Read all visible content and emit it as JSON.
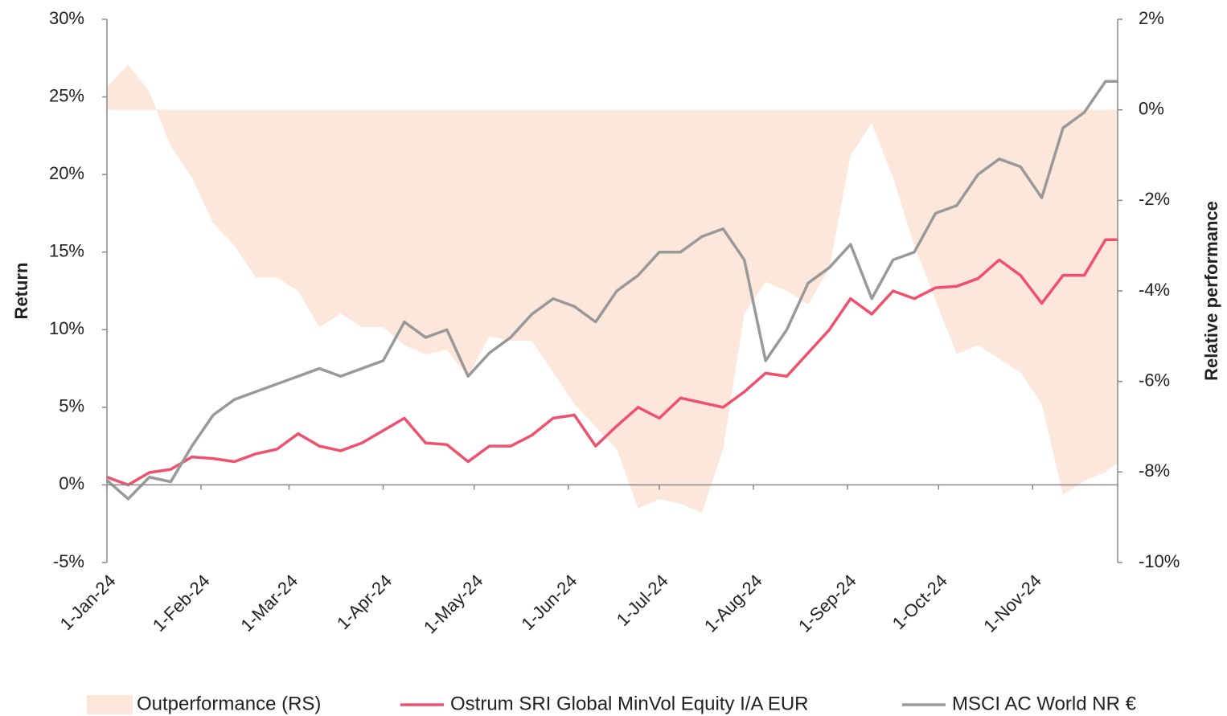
{
  "chart_data": {
    "type": "line",
    "y_label": "Return",
    "y2_label": "Relative performance",
    "x": [
      "2024-01-01",
      "2024-01-08",
      "2024-01-15",
      "2024-01-22",
      "2024-01-29",
      "2024-02-05",
      "2024-02-12",
      "2024-02-19",
      "2024-02-26",
      "2024-03-04",
      "2024-03-11",
      "2024-03-18",
      "2024-03-25",
      "2024-04-01",
      "2024-04-08",
      "2024-04-15",
      "2024-04-22",
      "2024-04-29",
      "2024-05-06",
      "2024-05-13",
      "2024-05-20",
      "2024-05-27",
      "2024-06-03",
      "2024-06-10",
      "2024-06-17",
      "2024-06-24",
      "2024-07-01",
      "2024-07-08",
      "2024-07-15",
      "2024-07-22",
      "2024-07-29",
      "2024-08-05",
      "2024-08-12",
      "2024-08-19",
      "2024-08-26",
      "2024-09-02",
      "2024-09-09",
      "2024-09-16",
      "2024-09-23",
      "2024-09-30",
      "2024-10-07",
      "2024-10-14",
      "2024-10-21",
      "2024-10-28",
      "2024-11-04",
      "2024-11-11",
      "2024-11-18",
      "2024-11-25",
      "2024-11-29"
    ],
    "xlim": [
      "2024-01-01",
      "2024-11-29"
    ],
    "xticks": [
      {
        "value": "2024-01-01",
        "label": "1-Jan-24"
      },
      {
        "value": "2024-02-01",
        "label": "1-Feb-24"
      },
      {
        "value": "2024-03-01",
        "label": "1-Mar-24"
      },
      {
        "value": "2024-04-01",
        "label": "1-Apr-24"
      },
      {
        "value": "2024-05-01",
        "label": "1-May-24"
      },
      {
        "value": "2024-06-01",
        "label": "1-Jun-24"
      },
      {
        "value": "2024-07-01",
        "label": "1-Jul-24"
      },
      {
        "value": "2024-08-01",
        "label": "1-Aug-24"
      },
      {
        "value": "2024-09-01",
        "label": "1-Sep-24"
      },
      {
        "value": "2024-10-01",
        "label": "1-Oct-24"
      },
      {
        "value": "2024-11-01",
        "label": "1-Nov-24"
      }
    ],
    "ylim": [
      -5,
      30
    ],
    "yticks": [
      {
        "value": -5,
        "label": "-5%"
      },
      {
        "value": 0,
        "label": "0%"
      },
      {
        "value": 5,
        "label": "5%"
      },
      {
        "value": 10,
        "label": "10%"
      },
      {
        "value": 15,
        "label": "15%"
      },
      {
        "value": 20,
        "label": "20%"
      },
      {
        "value": 25,
        "label": "25%"
      },
      {
        "value": 30,
        "label": "30%"
      }
    ],
    "y2lim": [
      -10,
      2
    ],
    "y2ticks": [
      {
        "value": -10,
        "label": "-10%"
      },
      {
        "value": -8,
        "label": "-8%"
      },
      {
        "value": -6,
        "label": "-6%"
      },
      {
        "value": -4,
        "label": "-4%"
      },
      {
        "value": -2,
        "label": "-2%"
      },
      {
        "value": 0,
        "label": "0%"
      },
      {
        "value": 2,
        "label": "2%"
      }
    ],
    "series": [
      {
        "name": "Outperformance (RS)",
        "type": "area",
        "axis": "y2",
        "color": "#fde6da",
        "values": [
          0.5,
          1.0,
          0.4,
          -0.8,
          -1.5,
          -2.5,
          -3.0,
          -3.7,
          -3.7,
          -4.0,
          -4.8,
          -4.5,
          -4.8,
          -4.8,
          -5.2,
          -5.4,
          -5.3,
          -5.9,
          -5.0,
          -5.1,
          -5.1,
          -5.8,
          -6.5,
          -7.0,
          -7.5,
          -8.8,
          -8.6,
          -8.7,
          -8.9,
          -7.5,
          -4.5,
          -3.8,
          -4.0,
          -4.3,
          -3.5,
          -1.0,
          -0.3,
          -1.5,
          -3.0,
          -4.2,
          -5.4,
          -5.2,
          -5.5,
          -5.8,
          -6.5,
          -8.5,
          -8.2,
          -8.0,
          -7.8
        ]
      },
      {
        "name": "Ostrum SRI Global MinVol Equity I/A EUR",
        "type": "line",
        "color": "#f0506e",
        "values": [
          0.5,
          0,
          0.8,
          1.0,
          1.8,
          1.7,
          1.5,
          2.0,
          2.3,
          3.3,
          2.5,
          2.2,
          2.7,
          3.5,
          4.3,
          2.7,
          2.6,
          1.5,
          2.5,
          2.5,
          3.2,
          4.3,
          4.5,
          2.5,
          3.8,
          5.0,
          4.3,
          5.6,
          5.3,
          5.0,
          6.0,
          7.2,
          7.0,
          8.5,
          10.0,
          12.0,
          11.0,
          12.5,
          12.0,
          12.7,
          12.8,
          13.3,
          14.5,
          13.5,
          11.7,
          13.5,
          13.5,
          15.8,
          15.8
        ]
      },
      {
        "name": "MSCI AC World NR €",
        "type": "line",
        "color": "#999999",
        "values": [
          0.3,
          -0.9,
          0.5,
          0.2,
          2.5,
          4.5,
          5.5,
          6.0,
          6.5,
          7.0,
          7.5,
          7.0,
          7.5,
          8.0,
          10.5,
          9.5,
          10.0,
          7.0,
          8.5,
          9.5,
          11.0,
          12.0,
          11.5,
          10.5,
          12.5,
          13.5,
          15.0,
          15.0,
          16.0,
          16.5,
          14.5,
          8.0,
          10.0,
          13.0,
          14.0,
          15.5,
          12.0,
          14.5,
          15.0,
          17.5,
          18.0,
          20.0,
          21.0,
          20.5,
          18.5,
          23.0,
          24.0,
          26.0,
          26.0
        ]
      }
    ]
  }
}
